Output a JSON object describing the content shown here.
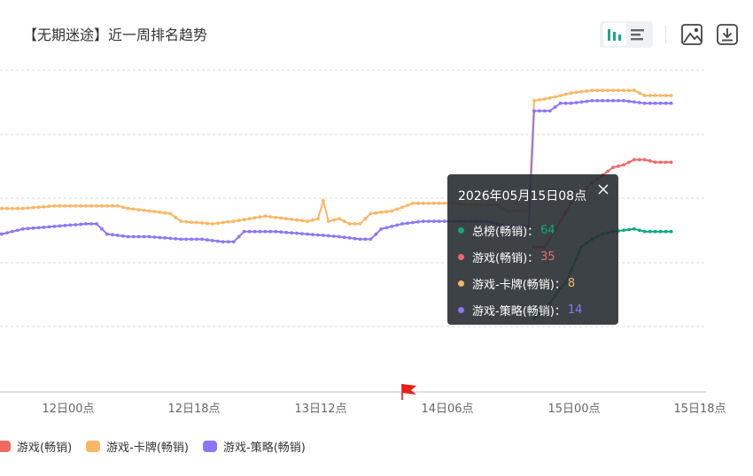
{
  "title": "【无期迷途】近一周排名趋势",
  "toolbar": {
    "view_chart": "bar-chart-icon",
    "view_list": "list-icon",
    "save_image": "image-icon",
    "download": "download-icon"
  },
  "chart_data": {
    "type": "line",
    "x_tick_labels": [
      "12日00点",
      "12日18点",
      "13日12点",
      "14日06点",
      "15日00点",
      "15日18点"
    ],
    "y_inverted": true,
    "ylim": [
      1,
      120
    ],
    "grid": true,
    "legend_position": "bottom-left",
    "colors": {
      "总榜(畅销)": "#0ea87f",
      "游戏(畅销)": "#f06a63",
      "游戏-卡牌(畅销)": "#fcb663",
      "游戏-策略(畅销)": "#8b76f7"
    },
    "series": [
      {
        "name": "游戏-卡牌(畅销)",
        "points": [
          [
            0,
            55
          ],
          [
            6,
            55
          ],
          [
            12,
            54
          ],
          [
            24,
            54
          ],
          [
            26,
            55
          ],
          [
            30,
            56
          ],
          [
            34,
            57
          ],
          [
            36,
            60
          ],
          [
            42,
            61
          ],
          [
            46,
            60
          ],
          [
            52,
            58
          ],
          [
            56,
            59
          ],
          [
            60,
            60
          ],
          [
            62,
            59
          ],
          [
            63,
            52
          ],
          [
            64,
            60
          ],
          [
            66,
            59
          ],
          [
            68,
            61
          ],
          [
            70,
            61
          ],
          [
            72,
            57
          ],
          [
            76,
            56
          ],
          [
            80,
            53
          ],
          [
            88,
            53
          ],
          [
            90,
            53.5
          ],
          [
            96,
            53.5
          ],
          [
            98,
            56
          ],
          [
            102,
            56
          ],
          [
            103,
            13
          ],
          [
            106,
            12
          ],
          [
            110,
            10
          ],
          [
            114,
            9
          ],
          [
            118,
            9
          ],
          [
            120,
            9
          ],
          [
            122,
            9
          ],
          [
            124,
            11
          ],
          [
            126,
            11
          ],
          [
            129,
            11
          ]
        ]
      },
      {
        "name": "游戏-策略(畅销)",
        "points": [
          [
            0,
            63
          ],
          [
            2,
            65
          ],
          [
            6,
            63
          ],
          [
            12,
            62
          ],
          [
            18,
            61
          ],
          [
            20,
            61
          ],
          [
            22,
            65
          ],
          [
            26,
            66
          ],
          [
            30,
            66
          ],
          [
            36,
            67
          ],
          [
            40,
            67
          ],
          [
            44,
            68
          ],
          [
            46,
            68
          ],
          [
            48,
            64
          ],
          [
            54,
            64
          ],
          [
            60,
            65
          ],
          [
            66,
            66
          ],
          [
            70,
            67
          ],
          [
            72,
            67
          ],
          [
            74,
            63
          ],
          [
            78,
            61
          ],
          [
            82,
            60
          ],
          [
            90,
            60
          ],
          [
            94,
            60
          ],
          [
            96,
            61
          ],
          [
            98,
            62
          ],
          [
            100,
            62
          ],
          [
            102,
            62
          ],
          [
            103,
            17
          ],
          [
            106,
            17
          ],
          [
            108,
            14
          ],
          [
            110,
            14
          ],
          [
            114,
            13
          ],
          [
            120,
            13
          ],
          [
            124,
            14
          ],
          [
            126,
            14
          ],
          [
            129,
            14
          ]
        ]
      },
      {
        "name": "游戏(畅销)",
        "points": [
          [
            103,
            70
          ],
          [
            105,
            70
          ],
          [
            106,
            67
          ],
          [
            108,
            60
          ],
          [
            110,
            53
          ],
          [
            112,
            49
          ],
          [
            114,
            45
          ],
          [
            116,
            42
          ],
          [
            118,
            39
          ],
          [
            120,
            38
          ],
          [
            122,
            36
          ],
          [
            124,
            36
          ],
          [
            126,
            37
          ],
          [
            128,
            37
          ],
          [
            129,
            37
          ]
        ]
      },
      {
        "name": "总榜(畅销)",
        "points": [
          [
            103,
            98
          ],
          [
            104,
            96
          ],
          [
            106,
            92
          ],
          [
            108,
            86
          ],
          [
            109,
            84
          ],
          [
            112,
            70
          ],
          [
            114,
            67
          ],
          [
            116,
            65
          ],
          [
            118,
            64
          ],
          [
            122,
            63
          ],
          [
            124,
            64
          ],
          [
            126,
            64
          ],
          [
            129,
            64
          ]
        ]
      }
    ]
  },
  "legend": [
    {
      "label": "游戏(畅销)",
      "color": "#f06a63"
    },
    {
      "label": "游戏-卡牌(畅销)",
      "color": "#fcb663"
    },
    {
      "label": "游戏-策略(畅销)",
      "color": "#8b76f7"
    }
  ],
  "tooltip": {
    "title": "2026年05月15日08点",
    "rows": [
      {
        "label": "总榜(畅销)：",
        "value": "64",
        "color": "#0ea87f"
      },
      {
        "label": "游戏(畅销)：",
        "value": "35",
        "color": "#f06a63"
      },
      {
        "label": "游戏-卡牌(畅销)：",
        "value": "8",
        "color": "#fcb663"
      },
      {
        "label": "游戏-策略(畅销)：",
        "value": "14",
        "color": "#8b76f7"
      }
    ]
  }
}
